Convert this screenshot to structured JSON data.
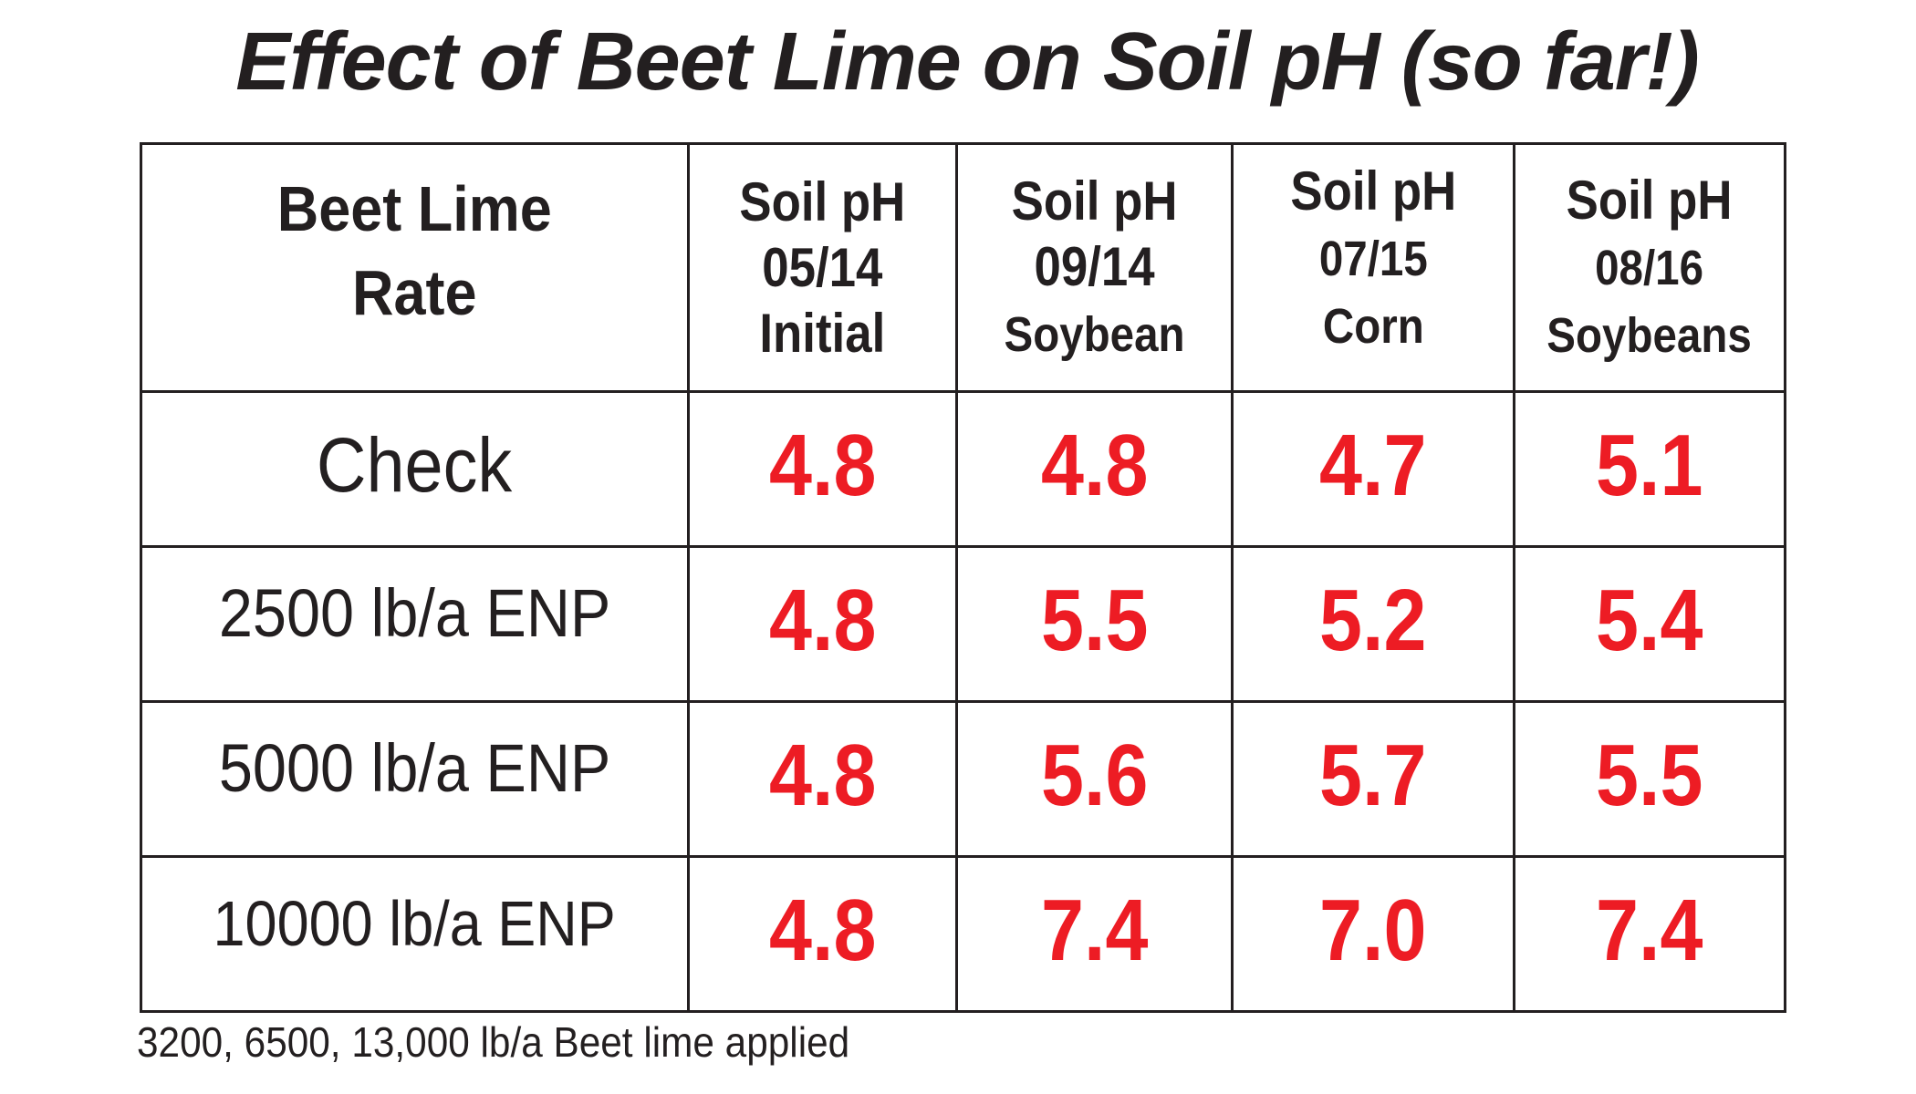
{
  "title": "Effect of Beet Lime on Soil pH (so far!)",
  "colors": {
    "text": "#231f20",
    "value_red": "#ED1C24",
    "border": "#231f20",
    "background": "#ffffff"
  },
  "table": {
    "row_header_title": {
      "line1": "Beet Lime",
      "line2": "Rate"
    },
    "columns": [
      {
        "line1": "Soil pH",
        "line2": "05/14",
        "line3": "Initial"
      },
      {
        "line1": "Soil pH",
        "line2": "09/14",
        "line3": "Soybean"
      },
      {
        "line1": "Soil pH",
        "line2": "07/15",
        "line3": "Corn"
      },
      {
        "line1": "Soil pH",
        "line2": "08/16",
        "line3": "Soybeans"
      }
    ],
    "rows": [
      {
        "rate": "Check",
        "values": [
          "4.8",
          "4.8",
          "4.7",
          "5.1"
        ]
      },
      {
        "rate": "2500 lb/a ENP",
        "values": [
          "4.8",
          "5.5",
          "5.2",
          "5.4"
        ]
      },
      {
        "rate": "5000 lb/a ENP",
        "values": [
          "4.8",
          "5.6",
          "5.7",
          "5.5"
        ]
      },
      {
        "rate": "10000 lb/a ENP",
        "values": [
          "4.8",
          "7.4",
          "7.0",
          "7.4"
        ]
      }
    ]
  },
  "footnote": "3200, 6500, 13,000 lb/a Beet lime applied"
}
